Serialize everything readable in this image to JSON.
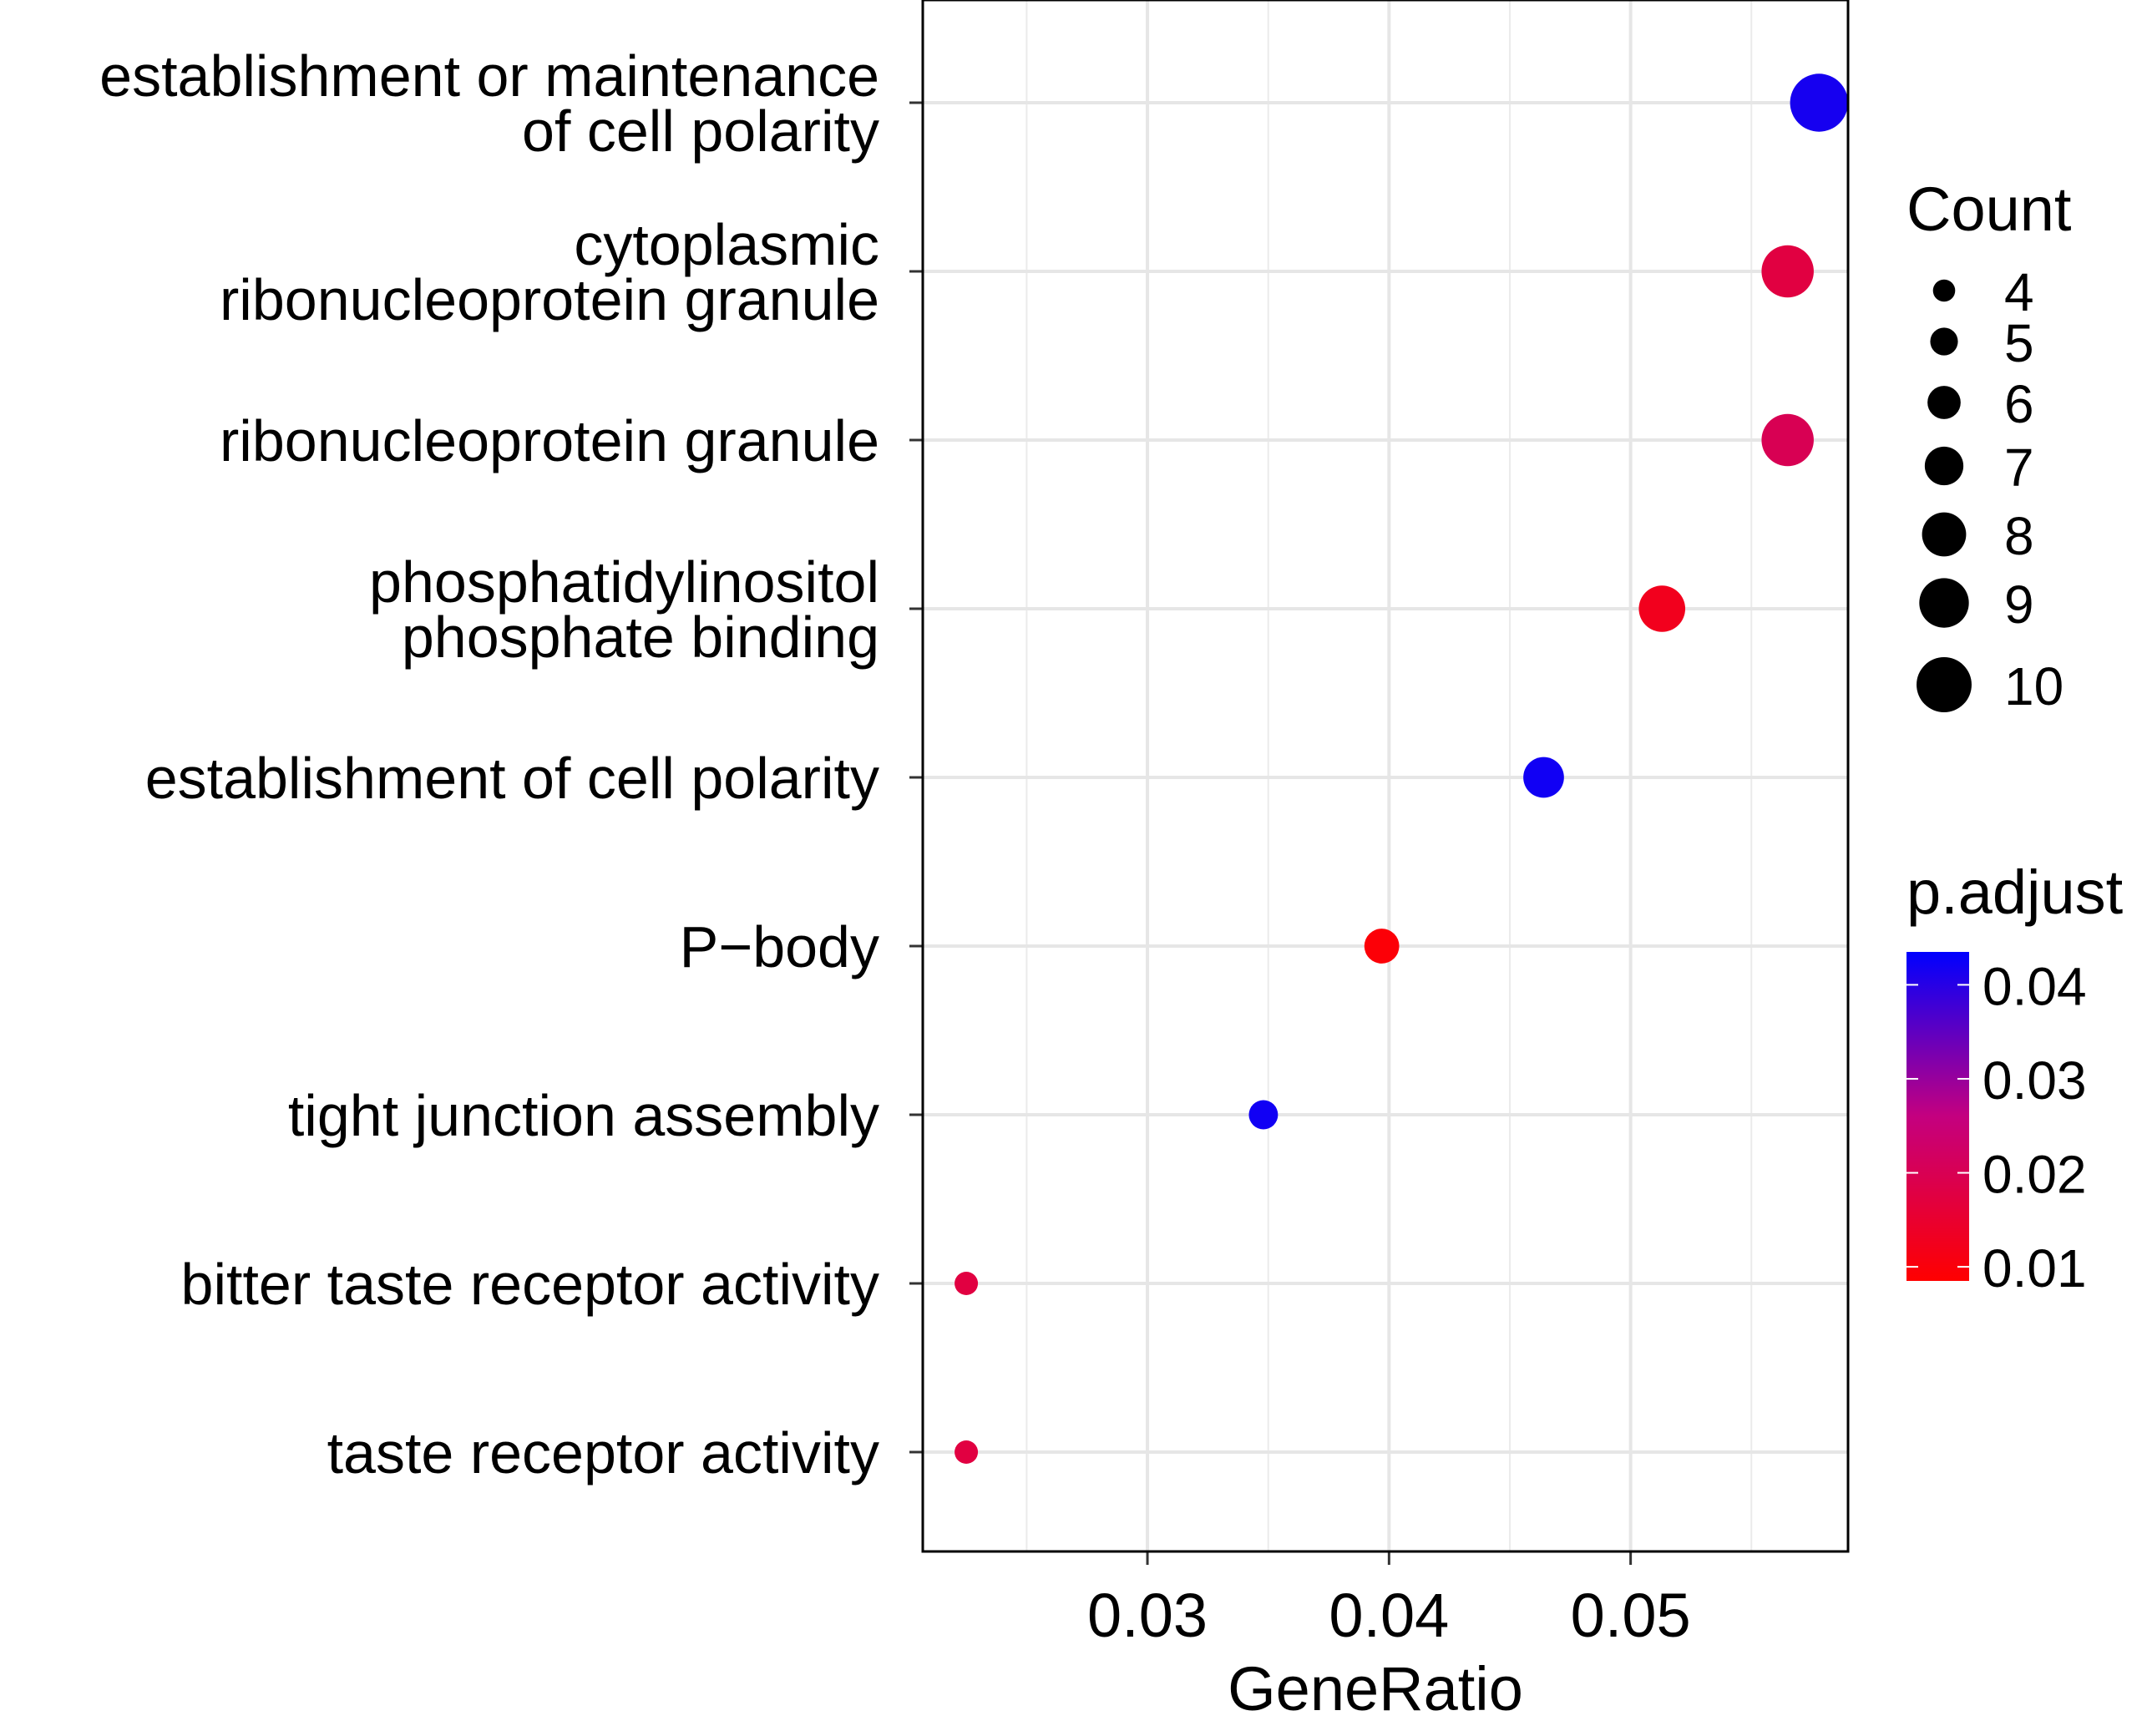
{
  "chart_data": {
    "type": "scatter",
    "xlabel": "GeneRatio",
    "ylabel": "",
    "xlim": [
      0.0207,
      0.059
    ],
    "x_ticks": [
      0.03,
      0.04,
      0.05
    ],
    "x_tick_labels": [
      "0.03",
      "0.04",
      "0.05"
    ],
    "grid": true,
    "categories": [
      [
        "establishment or maintenance",
        "of cell polarity"
      ],
      [
        "cytoplasmic",
        "ribonucleoprotein granule"
      ],
      [
        "ribonucleoprotein granule"
      ],
      [
        "phosphatidylinositol",
        "phosphate binding"
      ],
      [
        "establishment of cell polarity"
      ],
      [
        "P−body"
      ],
      [
        "tight junction assembly"
      ],
      [
        "bitter taste receptor activity"
      ],
      [
        "taste receptor activity"
      ]
    ],
    "points": [
      {
        "x": 0.0578,
        "count": 10,
        "p_adjust": 0.0415
      },
      {
        "x": 0.0565,
        "count": 9,
        "p_adjust": 0.0175
      },
      {
        "x": 0.0565,
        "count": 9,
        "p_adjust": 0.02
      },
      {
        "x": 0.0513,
        "count": 8,
        "p_adjust": 0.0125
      },
      {
        "x": 0.0464,
        "count": 7,
        "p_adjust": 0.042
      },
      {
        "x": 0.0397,
        "count": 6,
        "p_adjust": 0.0095
      },
      {
        "x": 0.0348,
        "count": 5,
        "p_adjust": 0.042
      },
      {
        "x": 0.0225,
        "count": 4,
        "p_adjust": 0.0175
      },
      {
        "x": 0.0225,
        "count": 4,
        "p_adjust": 0.0175
      }
    ],
    "size_legend": {
      "title": "Count",
      "values": [
        4,
        5,
        6,
        7,
        8,
        9,
        10
      ],
      "labels": [
        "4",
        "5",
        "6",
        "7",
        "8",
        "9",
        "10"
      ]
    },
    "color_legend": {
      "title": "p.adjust",
      "range": [
        0.0085,
        0.0435
      ],
      "ticks": [
        0.01,
        0.02,
        0.03,
        0.04
      ],
      "tick_labels": [
        "0.01",
        "0.02",
        "0.03",
        "0.04"
      ],
      "low_color": "#ff0000",
      "high_color": "#0000ff"
    }
  }
}
